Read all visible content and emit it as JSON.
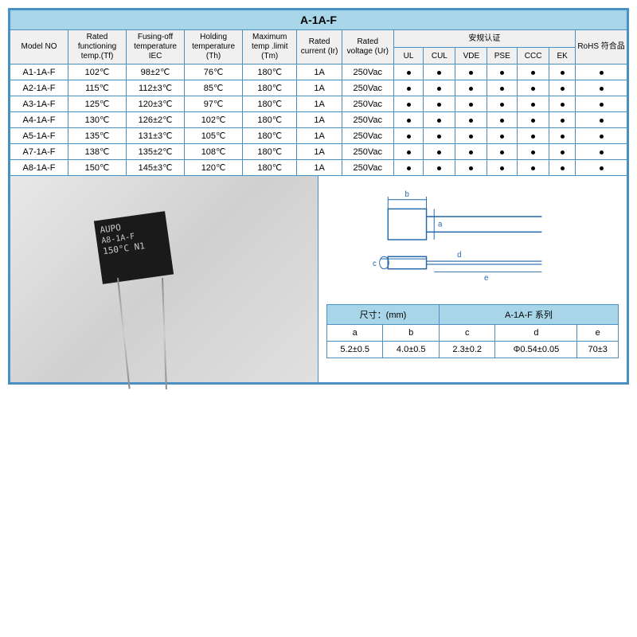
{
  "title": "A-1A-F",
  "main_table": {
    "headers": {
      "model": "Model\nNO",
      "rated_temp": "Rated functioning temp.(Tf)",
      "fusing": "Fusing-off temperature IEC",
      "holding": "Holding temperature (Th)",
      "max_temp": "Maximum temp .limit (Tm)",
      "current": "Rated current (Ir)",
      "voltage": "Rated voltage (Ur)",
      "cert": "安规认证",
      "rohs": "RoHS 符合品",
      "cert_cols": [
        "UL",
        "CUL",
        "VDE",
        "PSE",
        "CCC",
        "EK"
      ]
    },
    "rows": [
      {
        "model": "A1-1A-F",
        "tf": "102℃",
        "fuse": "98±2℃",
        "th": "76℃",
        "tm": "180℃",
        "ir": "1A",
        "ur": "250Vac"
      },
      {
        "model": "A2-1A-F",
        "tf": "115℃",
        "fuse": "112±3℃",
        "th": "85℃",
        "tm": "180℃",
        "ir": "1A",
        "ur": "250Vac"
      },
      {
        "model": "A3-1A-F",
        "tf": "125℃",
        "fuse": "120±3℃",
        "th": "97℃",
        "tm": "180℃",
        "ir": "1A",
        "ur": "250Vac"
      },
      {
        "model": "A4-1A-F",
        "tf": "130℃",
        "fuse": "126±2℃",
        "th": "102℃",
        "tm": "180℃",
        "ir": "1A",
        "ur": "250Vac"
      },
      {
        "model": "A5-1A-F",
        "tf": "135℃",
        "fuse": "131±3℃",
        "th": "105℃",
        "tm": "180℃",
        "ir": "1A",
        "ur": "250Vac"
      },
      {
        "model": "A7-1A-F",
        "tf": "138℃",
        "fuse": "135±2℃",
        "th": "108℃",
        "tm": "180℃",
        "ir": "1A",
        "ur": "250Vac"
      },
      {
        "model": "A8-1A-F",
        "tf": "150℃",
        "fuse": "145±3℃",
        "th": "120℃",
        "tm": "180℃",
        "ir": "1A",
        "ur": "250Vac"
      }
    ]
  },
  "component_label": {
    "line1": "AUPO",
    "line2": "A8-1A-F",
    "line3": "150°C N1"
  },
  "dim_table": {
    "header1": "尺寸：(mm)",
    "header2": "A-1A-F 系列",
    "cols": [
      "a",
      "b",
      "c",
      "d",
      "e"
    ],
    "vals": [
      "5.2±0.5",
      "4.0±0.5",
      "2.3±0.2",
      "Φ0.54±0.05",
      "70±3"
    ]
  },
  "diagram_labels": {
    "a": "a",
    "b": "b",
    "c": "c",
    "d": "d",
    "e": "e"
  },
  "colors": {
    "border": "#4a90c2",
    "header_bg": "#a8d5e8",
    "row_bg": "#ffffff",
    "text": "#000000"
  }
}
